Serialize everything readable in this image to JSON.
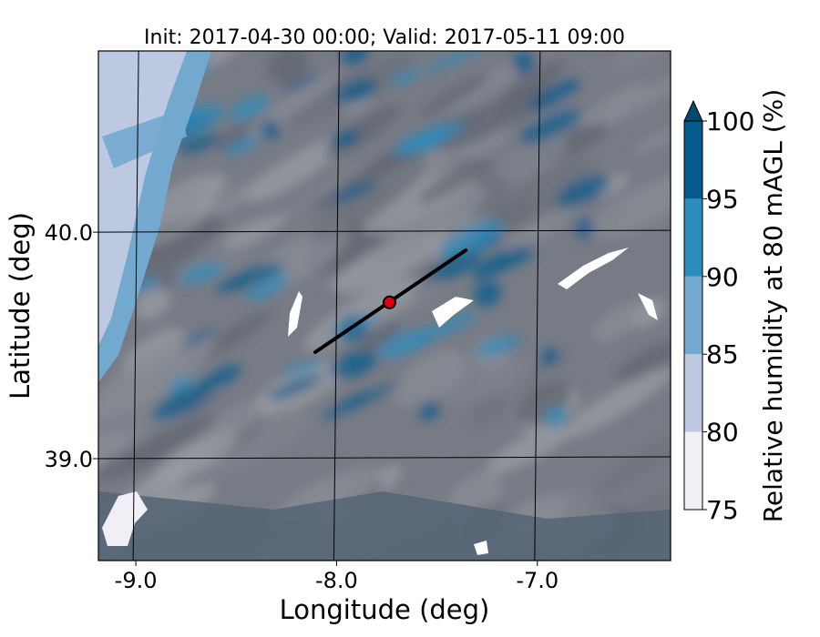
{
  "chart_data": {
    "type": "heatmap",
    "title": "Init: 2017-04-30 00:00; Valid: 2017-05-11 09:00",
    "xlabel": "Longitude (deg)",
    "ylabel": "Latitude (deg)",
    "xlim": [
      -9.2,
      -6.35
    ],
    "ylim": [
      38.55,
      40.8
    ],
    "x_ticks": [
      {
        "value": -9.0,
        "label": "-9.0"
      },
      {
        "value": -8.0,
        "label": "-8.0"
      },
      {
        "value": -7.0,
        "label": "-7.0"
      }
    ],
    "y_ticks": [
      {
        "value": 40.0,
        "label": "40.0"
      },
      {
        "value": 39.0,
        "label": "39.0"
      }
    ],
    "grid": true,
    "field": "Relative humidity at 80 mAGL",
    "colorbar": {
      "label": "Relative humidity at 80 mAGL (%)",
      "levels": [
        75,
        80,
        85,
        90,
        95,
        100
      ],
      "tick_labels": [
        "75",
        "80",
        "85",
        "90",
        "95",
        "100"
      ],
      "colors": [
        "#f1eef6",
        "#bdc9e1",
        "#74a9cf",
        "#2b8cbe",
        "#045a8d"
      ],
      "extend": "max",
      "extend_color": "#034a72"
    },
    "background_color": "#777b85",
    "cross_section": {
      "start": {
        "lon": -8.12,
        "lat": 39.47
      },
      "end": {
        "lon": -7.37,
        "lat": 39.92
      },
      "color": "#000000"
    },
    "point": {
      "lon": -7.75,
      "lat": 39.69,
      "color": "#e0000f"
    }
  }
}
